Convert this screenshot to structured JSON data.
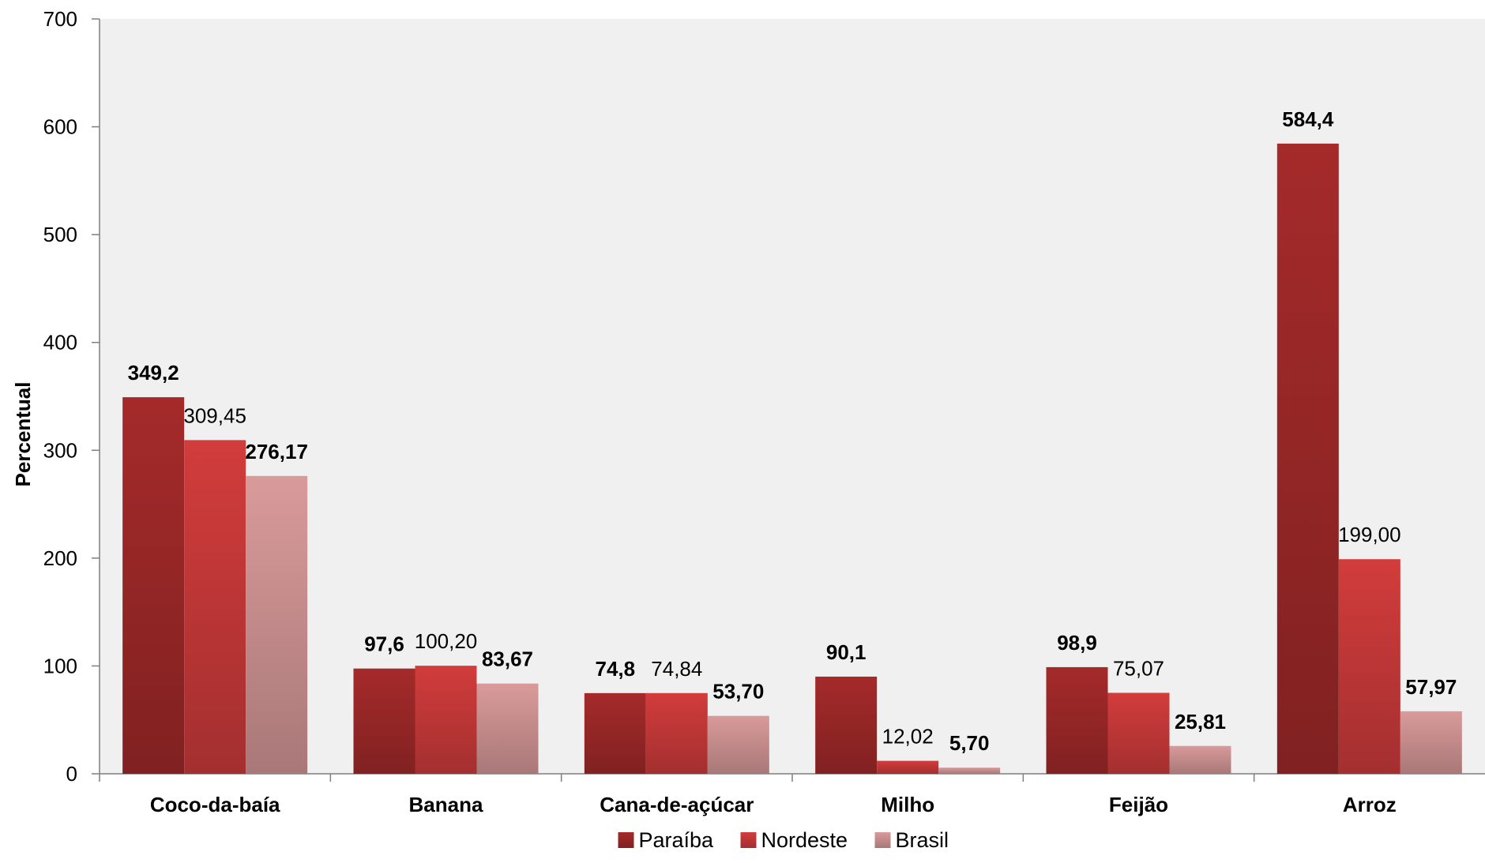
{
  "chart_data": {
    "type": "bar",
    "title": "",
    "xlabel": "",
    "ylabel": "Percentual",
    "ylim": [
      0,
      700
    ],
    "yticks": [
      0,
      100,
      200,
      300,
      400,
      500,
      600,
      700
    ],
    "categories": [
      "Coco-da-baía",
      "Banana",
      "Cana-de-açúcar",
      "Milho",
      "Feijão",
      "Arroz"
    ],
    "series": [
      {
        "name": "Paraíba",
        "color": "#a52a2a",
        "values": [
          349.2,
          97.6,
          74.8,
          90.1,
          98.9,
          584.4
        ],
        "labels": [
          "349,2",
          "97,6",
          "74,8",
          "90,1",
          "98,9",
          "584,4"
        ],
        "label_bold": [
          true,
          true,
          true,
          true,
          true,
          true
        ]
      },
      {
        "name": "Nordeste",
        "color": "#d23c3c",
        "values": [
          309.45,
          100.2,
          74.84,
          12.02,
          75.07,
          199.0
        ],
        "labels": [
          "309,45",
          "100,20",
          "74,84",
          "12,02",
          "75,07",
          "199,00"
        ],
        "label_bold": [
          false,
          false,
          false,
          false,
          false,
          false
        ]
      },
      {
        "name": "Brasil",
        "color": "#d99a9a",
        "values": [
          276.17,
          83.67,
          53.7,
          5.7,
          25.81,
          57.97
        ],
        "labels": [
          "276,17",
          "83,67",
          "53,70",
          "5,70",
          "25,81",
          "57,97"
        ],
        "label_bold": [
          true,
          true,
          true,
          true,
          true,
          true
        ]
      }
    ],
    "legend_position": "bottom",
    "grid": false,
    "plot_background": "#f0f0f0"
  }
}
